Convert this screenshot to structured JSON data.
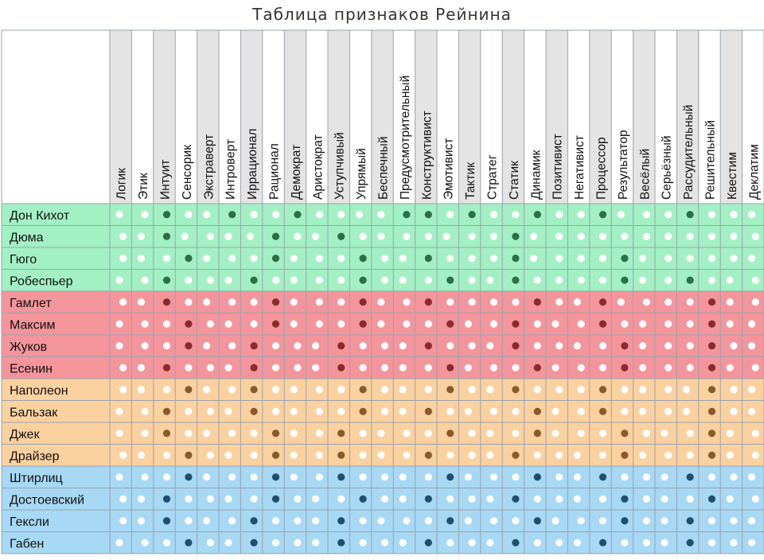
{
  "chart_data": {
    "type": "table",
    "title": "Таблица признаков Рейнина",
    "columns": [
      "Логик",
      "Этик",
      "Интуит",
      "Сенсорик",
      "Экстраверт",
      "Интроверт",
      "Иррационал",
      "Рационал",
      "Демократ",
      "Аристократ",
      "Уступчивый",
      "Упрямый",
      "Беспечный",
      "Предусмотрительный",
      "Конструктивист",
      "Эмотивист",
      "Тактик",
      "Стратег",
      "Статик",
      "Динамик",
      "Позитивист",
      "Негативист",
      "Процессор",
      "Результатор",
      "Весёлый",
      "Серьёзный",
      "Рассудительный",
      "Решительный",
      "Квестим",
      "Деклатим"
    ],
    "rows": [
      {
        "name": "Дон Кихот",
        "quadra": "alpha",
        "dots": "lwdwldwwdwwllddwdwwdwwdlwwdwwl"
      },
      {
        "name": "Дюма",
        "quadra": "alpha",
        "dots": "wldlwlldwldwlwwlwwdlwwwwwwwwww"
      },
      {
        "name": "Гюго",
        "quadra": "alpha",
        "dots": "wlwdlwwdlwwdwldwwwdlwwwdlwwwwl"
      },
      {
        "name": "Робеспьер",
        "quadra": "alpha",
        "dots": "lwdwwldwlwwdwlwdwldwwwwdlwdwlw"
      },
      {
        "name": "Гамлет",
        "quadra": "beta",
        "dots": "wldwlwwdlwwdlwdwwwwdwldlwwwdlw"
      },
      {
        "name": "Максим",
        "quadra": "beta",
        "dots": "lwwdwlwdlwwdlwwdlwdwlwdwlwwdll"
      },
      {
        "name": "Жуков",
        "quadra": "beta",
        "dots": "lwwdlwdwwldwwldwwldwwlwdlwwdwl"
      },
      {
        "name": "Есенин",
        "quadra": "beta",
        "dots": "wldwwldwwldwwlwdlwwdlwwdlwwdlw"
      },
      {
        "name": "Наполеон",
        "quadra": "gamma",
        "dots": "wlwdlwdwlwwdwlwdwldwwwdwlwldwl"
      },
      {
        "name": "Бальзак",
        "quadra": "gamma",
        "dots": "lwdwwldwlwwdwldwlwwdlwdwlwldwl"
      },
      {
        "name": "Джек",
        "quadra": "gamma",
        "dots": "lwdwlwwdlwdwlwwdwlwdlwwdwlwdlw"
      },
      {
        "name": "Драйзер",
        "quadra": "gamma",
        "dots": "wlwdwlwdlwdwlwdwwldwwlwdlwwdlw"
      },
      {
        "name": "Штирлиц",
        "quadra": "delta",
        "dots": "lwwdlwwdlwdwwlwdlwwdwldwwldwwl"
      },
      {
        "name": "Достоевский",
        "quadra": "delta",
        "dots": "wldwwlwdwlwdwldwwldwwlwdwlwdlw"
      },
      {
        "name": "Гексли",
        "quadra": "delta",
        "dots": "wldwlwdwwldwlwwdlwwdlwwdwldwwl"
      },
      {
        "name": "Габен",
        "quadra": "delta",
        "dots": "lwwdwldwwldwwldwwldwwldwwldwwl"
      }
    ]
  },
  "colors": {
    "alpha": "#a3f0c4",
    "beta": "#f4949b",
    "gamma": "#fbd1a0",
    "delta": "#a7d8f4",
    "dot_white": "#ffffff",
    "dot_alpha": "#2b6e47",
    "dot_beta": "#8a2b2b",
    "dot_gamma": "#8a5a2a",
    "dot_delta": "#1e4f6e",
    "grid": "#9aa3ad",
    "header_stripe": "#e4e4e4"
  }
}
